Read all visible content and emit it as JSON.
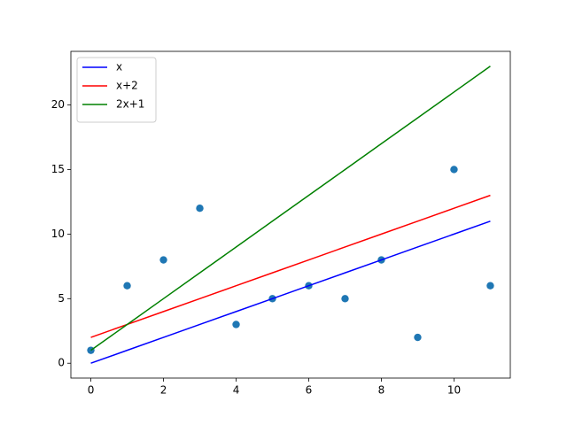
{
  "chart_data": {
    "type": "line",
    "x": [
      0,
      1,
      2,
      3,
      4,
      5,
      6,
      7,
      8,
      9,
      10,
      11
    ],
    "series": [
      {
        "type": "scatter",
        "color": "#1f77b4",
        "values": [
          1,
          6,
          8,
          12,
          3,
          5,
          6,
          5,
          8,
          2,
          15,
          6
        ]
      },
      {
        "type": "line",
        "name": "x",
        "color": "#0000ff",
        "values": [
          0,
          1,
          2,
          3,
          4,
          5,
          6,
          7,
          8,
          9,
          10,
          11
        ]
      },
      {
        "type": "line",
        "name": "x+2",
        "color": "#ff0000",
        "values": [
          2,
          3,
          4,
          5,
          6,
          7,
          8,
          9,
          10,
          11,
          12,
          13
        ]
      },
      {
        "type": "line",
        "name": "2x+1",
        "color": "#008000",
        "values": [
          1,
          3,
          5,
          7,
          9,
          11,
          13,
          15,
          17,
          19,
          21,
          23
        ]
      }
    ],
    "xlim": [
      -0.55,
      11.55
    ],
    "xticks": [
      0,
      2,
      4,
      6,
      8,
      10
    ],
    "ylim": [
      -1.15,
      24.15
    ],
    "yticks": [
      0,
      5,
      10,
      15,
      20
    ],
    "grid": false,
    "legend": "upper left"
  }
}
